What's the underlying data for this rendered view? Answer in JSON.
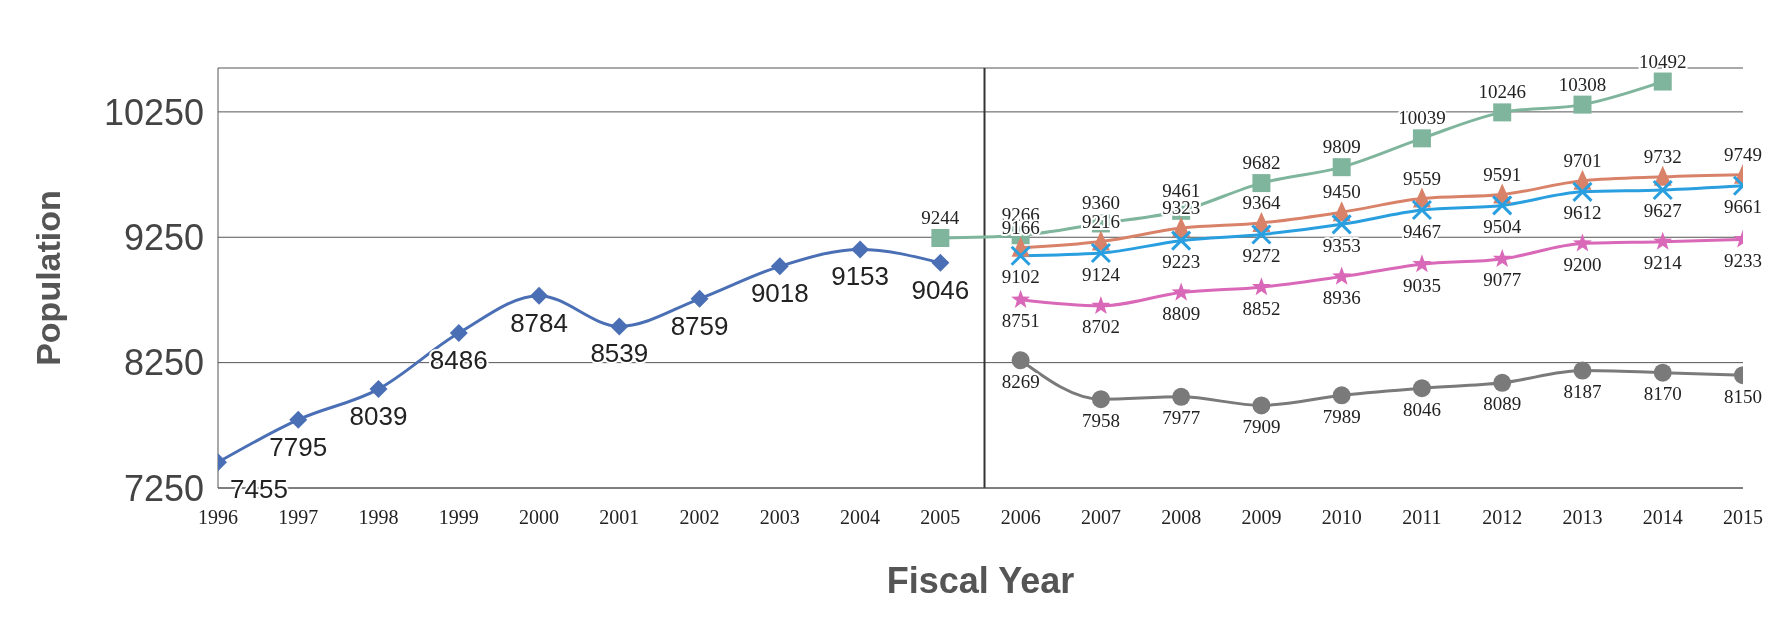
{
  "chart_data": {
    "type": "line",
    "xlabel": "Fiscal Year",
    "ylabel": "Population",
    "xlim": [
      1996,
      2015
    ],
    "xticks": [
      1996,
      1997,
      1998,
      1999,
      2000,
      2001,
      2002,
      2003,
      2004,
      2005,
      2006,
      2007,
      2008,
      2009,
      2010,
      2011,
      2012,
      2013,
      2014,
      2015
    ],
    "ylim": [
      7250,
      10600
    ],
    "yticks": [
      7250,
      8250,
      9250,
      10250
    ],
    "grid": "y",
    "data_labels": true,
    "ref_lines": [
      {
        "axis": "x",
        "value": 2005.55,
        "color": "#333333",
        "line_style": "solid"
      }
    ],
    "series": [
      {
        "color": "#4a6fb5",
        "marker": "diamond",
        "x": [
          1996,
          1997,
          1998,
          1999,
          2000,
          2001,
          2002,
          2003,
          2004,
          2005
        ],
        "values": [
          7455,
          7795,
          8039,
          8486,
          8784,
          8539,
          8759,
          9018,
          9153,
          9046
        ]
      },
      {
        "color": "#7fb59c",
        "marker": "square",
        "x": [
          2005,
          2006,
          2007,
          2008,
          2009,
          2010,
          2011,
          2012,
          2013,
          2014
        ],
        "values": [
          9244,
          9266,
          9360,
          9461,
          9682,
          9809,
          10039,
          10246,
          10308,
          10492
        ]
      },
      {
        "color": "#d9826a",
        "marker": "triangle",
        "x": [
          2006,
          2007,
          2008,
          2009,
          2010,
          2011,
          2012,
          2013,
          2014,
          2015
        ],
        "values": [
          9166,
          9216,
          9323,
          9364,
          9450,
          9559,
          9591,
          9701,
          9732,
          9749
        ]
      },
      {
        "color": "#2a9fe0",
        "marker": "cross",
        "x": [
          2006,
          2007,
          2008,
          2009,
          2010,
          2011,
          2012,
          2013,
          2014,
          2015
        ],
        "values": [
          9102,
          9124,
          9223,
          9272,
          9353,
          9467,
          9504,
          9612,
          9627,
          9661
        ]
      },
      {
        "color": "#d968b8",
        "marker": "star",
        "x": [
          2006,
          2007,
          2008,
          2009,
          2010,
          2011,
          2012,
          2013,
          2014,
          2015
        ],
        "values": [
          8751,
          8702,
          8809,
          8852,
          8936,
          9035,
          9077,
          9200,
          9214,
          9233
        ]
      },
      {
        "color": "#7a7a7a",
        "marker": "circle",
        "x": [
          2006,
          2007,
          2008,
          2009,
          2010,
          2011,
          2012,
          2013,
          2014,
          2015
        ],
        "values": [
          8269,
          7958,
          7977,
          7909,
          7989,
          8046,
          8089,
          8187,
          8170,
          8150
        ]
      }
    ]
  }
}
